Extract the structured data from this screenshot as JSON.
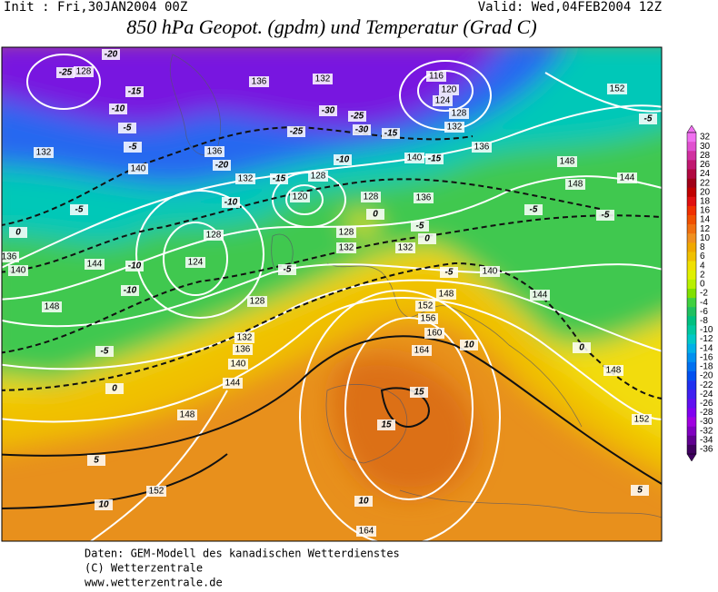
{
  "header": {
    "init": "Init : Fri,30JAN2004 00Z",
    "valid": "Valid: Wed,04FEB2004 12Z",
    "title": "850 hPa Geopot. (gpdm) und Temperatur (Grad C)"
  },
  "legend": {
    "labels": [
      32,
      30,
      28,
      26,
      24,
      22,
      20,
      18,
      16,
      14,
      12,
      10,
      8,
      6,
      4,
      2,
      0,
      -2,
      -4,
      -6,
      -8,
      -10,
      -12,
      -14,
      -16,
      -18,
      -20,
      -22,
      -24,
      -26,
      -28,
      -30,
      -32,
      -34,
      -36
    ],
    "colors": [
      "#f070f0",
      "#e050d0",
      "#d030a0",
      "#c01870",
      "#b00840",
      "#a00018",
      "#c00000",
      "#e01010",
      "#f03000",
      "#f05000",
      "#f07010",
      "#f09020",
      "#f0a800",
      "#f0c000",
      "#f0e000",
      "#e0f000",
      "#b8f000",
      "#80e000",
      "#40d040",
      "#20c060",
      "#00c080",
      "#00c8a0",
      "#00c8c8",
      "#00b0e8",
      "#0090f0",
      "#0070f0",
      "#0050f0",
      "#2030f0",
      "#4020f0",
      "#6010f0",
      "#8000f0",
      "#a000e0",
      "#8000c0",
      "#600090",
      "#400060"
    ]
  },
  "map": {
    "geopotential_labels": [
      128,
      136,
      132,
      116,
      120,
      124,
      128,
      132,
      136,
      152,
      132,
      140,
      136,
      132,
      128,
      120,
      140,
      128,
      136,
      148,
      148,
      144,
      136,
      140,
      128,
      124,
      128,
      132,
      132,
      144,
      140,
      148,
      144,
      148,
      128,
      152,
      156,
      160,
      164,
      132,
      136,
      140,
      144,
      148,
      148,
      152,
      152,
      164
    ],
    "temperature_labels": [
      -20,
      -25,
      -15,
      -10,
      -5,
      -5,
      -20,
      -25,
      -30,
      -25,
      -30,
      -15,
      -10,
      -15,
      -15,
      -10,
      -5,
      0,
      -5,
      0,
      0,
      -5,
      -5,
      -5,
      -10,
      -10,
      -5,
      -5,
      -5,
      0,
      0,
      10,
      15,
      15,
      5,
      10,
      10,
      5
    ]
  },
  "footer": {
    "lines": [
      "Daten: GEM-Modell des kanadischen Wetterdienstes",
      "(C) Wetterzentrale",
      "www.wetterzentrale.de"
    ]
  }
}
